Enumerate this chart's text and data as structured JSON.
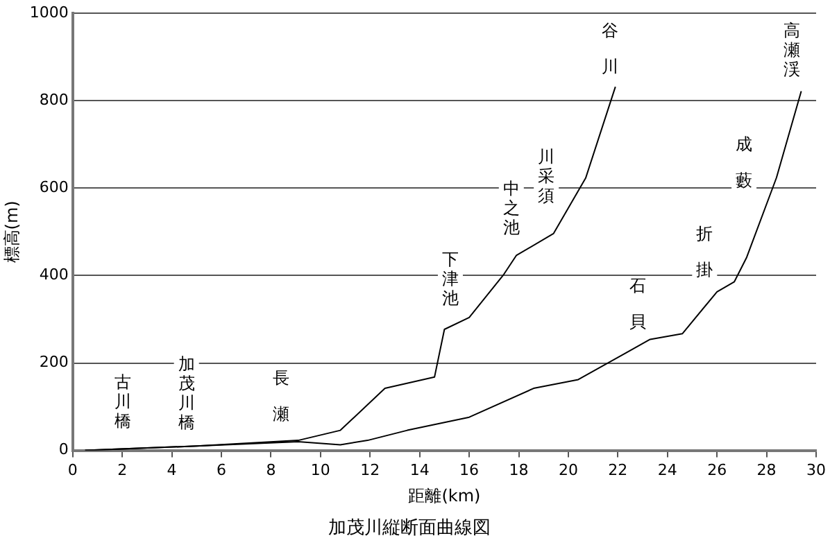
{
  "chart_data": {
    "type": "line",
    "title": "加茂川縦断面曲線図",
    "xlabel": "距離(km)",
    "ylabel": "標高(m)",
    "xlim": [
      0,
      30
    ],
    "xticks": [
      0,
      2,
      4,
      6,
      8,
      10,
      12,
      14,
      16,
      18,
      20,
      22,
      24,
      26,
      28,
      30
    ],
    "ylim": [
      0,
      1000
    ],
    "yticks": [
      0,
      200,
      400,
      600,
      800,
      1000
    ],
    "grid": "y",
    "legend": false,
    "marker": "none",
    "line_style": "solid",
    "series": [
      {
        "color": "#000000",
        "x": [
          0.5,
          5,
          9.1,
          10.8,
          12.6,
          14.6,
          15.0,
          16,
          17.4,
          17.9,
          19.4,
          20.7,
          21.9
        ],
        "values": [
          0,
          10,
          23,
          46,
          142,
          168,
          277,
          304,
          403,
          446,
          496,
          623,
          832
        ]
      },
      {
        "color": "#000000",
        "x": [
          0.5,
          5,
          9.1,
          10.8,
          11.9,
          13.5,
          16,
          18.6,
          20.4,
          23.3,
          24.6,
          26,
          26.7,
          27.2,
          28.4,
          29.4
        ],
        "values": [
          0,
          10,
          20,
          13,
          23,
          46,
          76,
          142,
          162,
          254,
          267,
          363,
          386,
          442,
          624,
          822
        ]
      }
    ],
    "annotations": [
      "古川橋",
      "加茂川橋",
      "長瀬",
      "下津池",
      "中之池",
      "川采須",
      "谷川",
      "石貝",
      "折掛",
      "成藪",
      "高瀬渓"
    ]
  }
}
